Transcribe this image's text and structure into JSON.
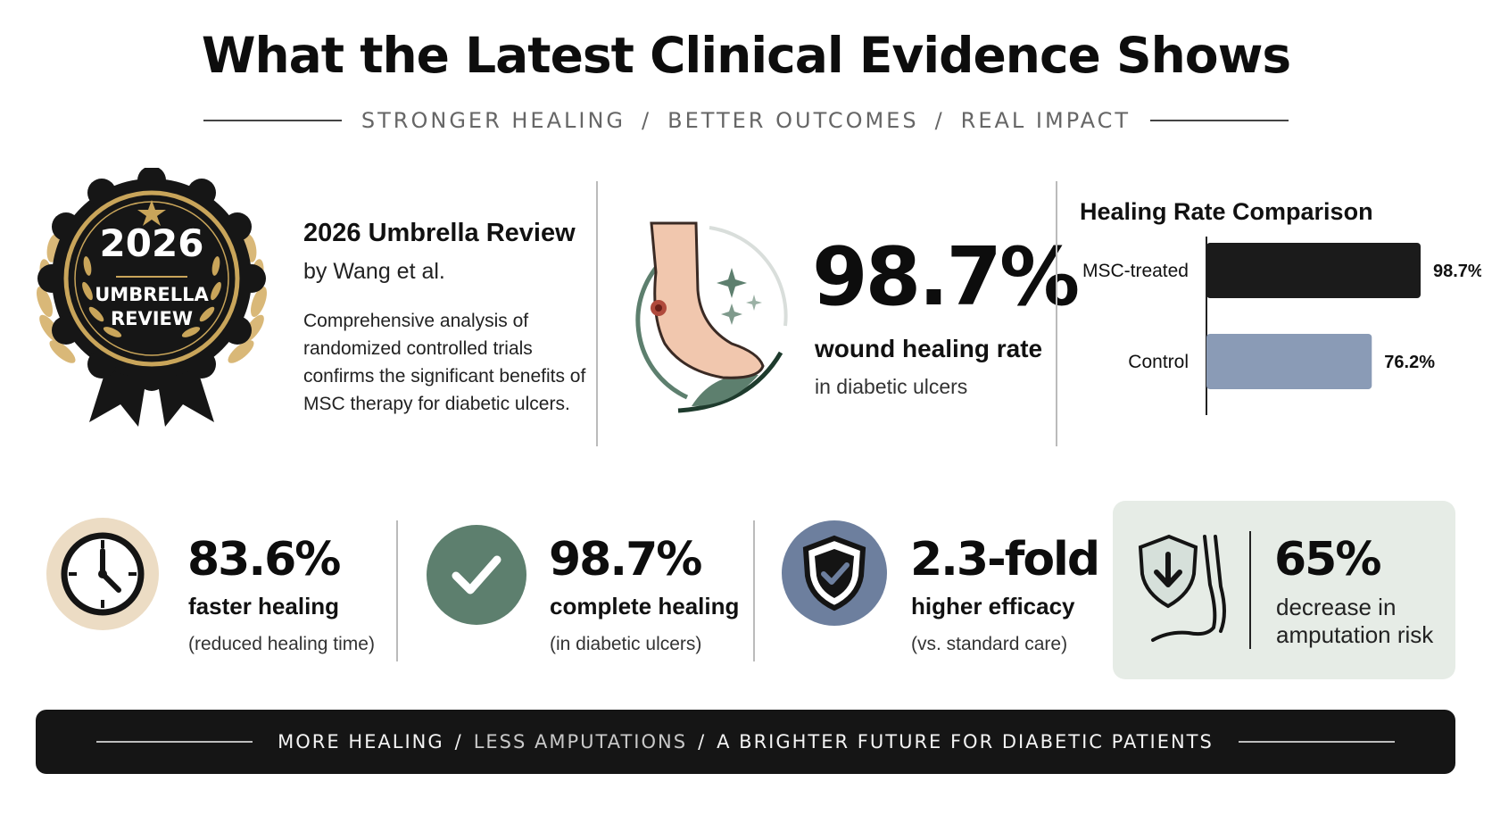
{
  "title": "What the Latest Clinical Evidence Shows",
  "subtitle": {
    "part1": "STRONGER HEALING",
    "part2": "BETTER OUTCOMES",
    "part3": "REAL IMPACT",
    "separator": "/"
  },
  "badge": {
    "year": "2026",
    "line1": "UMBRELLA",
    "line2": "REVIEW"
  },
  "review": {
    "heading": "2026 Umbrella Review",
    "byline": "by Wang et al.",
    "body": "Comprehensive analysis of randomized controlled trials confirms the significant benefits of MSC therapy for diabetic ulcers."
  },
  "wound": {
    "value": "98.7%",
    "label": "wound healing rate",
    "sub": "in diabetic ulcers"
  },
  "chart_data": {
    "type": "bar",
    "title": "Healing Rate Comparison",
    "orientation": "horizontal",
    "categories": [
      "MSC-treated",
      "Control"
    ],
    "values": [
      98.7,
      76.2
    ],
    "value_labels": [
      "98.7%",
      "76.2%"
    ],
    "colors": [
      "#1b1b1b",
      "#8a9bb6"
    ],
    "xlim": [
      0,
      100
    ],
    "grid": false
  },
  "stats": [
    {
      "value": "83.6%",
      "label": "faster healing",
      "sub": "(reduced healing time)",
      "icon": "clock-icon"
    },
    {
      "value": "98.7%",
      "label": "complete healing",
      "sub": "(in diabetic ulcers)",
      "icon": "checkmark-icon"
    },
    {
      "value": "2.3-fold",
      "label": "higher efficacy",
      "sub": "(vs. standard care)",
      "icon": "shield-check-icon"
    }
  ],
  "amputation": {
    "value": "65%",
    "label_line1": "decrease in",
    "label_line2": "amputation risk",
    "icon": "shield-foot-icon"
  },
  "footer": {
    "part1": "MORE HEALING",
    "part2": "LESS AMPUTATIONS",
    "part3": "A BRIGHTER FUTURE FOR DIABETIC PATIENTS",
    "separator": "/"
  },
  "colors": {
    "gold": "#c9a55a",
    "dark": "#151515",
    "green": "#5d7f6e",
    "slate": "#6d7f9e",
    "beige": "#ecdcc4",
    "panel": "#e6ece6"
  }
}
